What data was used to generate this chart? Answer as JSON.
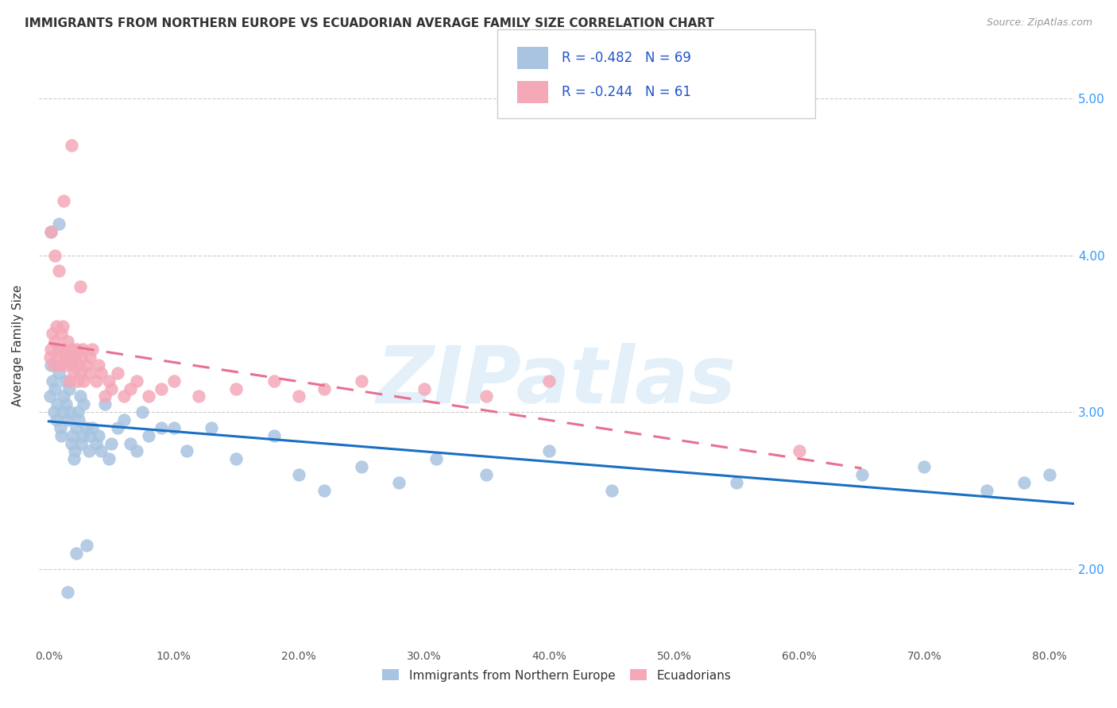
{
  "title": "IMMIGRANTS FROM NORTHERN EUROPE VS ECUADORIAN AVERAGE FAMILY SIZE CORRELATION CHART",
  "source": "Source: ZipAtlas.com",
  "ylabel": "Average Family Size",
  "yticks_right": [
    2.0,
    3.0,
    4.0,
    5.0
  ],
  "ylim": [
    1.5,
    5.35
  ],
  "xlim": [
    -0.008,
    0.82
  ],
  "legend_label1": "Immigrants from Northern Europe",
  "legend_label2": "Ecuadorians",
  "R1": -0.482,
  "N1": 69,
  "R2": -0.244,
  "N2": 61,
  "color_blue": "#a8c4e0",
  "color_pink": "#f4a8b8",
  "trendline_blue": "#1a6fc4",
  "trendline_pink": "#e87090",
  "watermark": "ZIPatlas",
  "blue_x": [
    0.001,
    0.002,
    0.003,
    0.004,
    0.005,
    0.006,
    0.007,
    0.008,
    0.009,
    0.01,
    0.011,
    0.012,
    0.013,
    0.014,
    0.015,
    0.016,
    0.017,
    0.018,
    0.019,
    0.02,
    0.021,
    0.022,
    0.023,
    0.024,
    0.025,
    0.026,
    0.027,
    0.028,
    0.03,
    0.032,
    0.033,
    0.035,
    0.038,
    0.04,
    0.042,
    0.045,
    0.048,
    0.05,
    0.055,
    0.06,
    0.065,
    0.07,
    0.075,
    0.08,
    0.09,
    0.1,
    0.11,
    0.13,
    0.15,
    0.18,
    0.2,
    0.22,
    0.25,
    0.28,
    0.31,
    0.35,
    0.4,
    0.45,
    0.55,
    0.65,
    0.7,
    0.75,
    0.78,
    0.8,
    0.002,
    0.008,
    0.015,
    0.022,
    0.03
  ],
  "blue_y": [
    3.1,
    3.3,
    3.2,
    3.0,
    3.15,
    2.95,
    3.05,
    3.25,
    2.9,
    2.85,
    3.0,
    3.1,
    3.2,
    3.05,
    2.95,
    3.15,
    3.0,
    2.8,
    2.85,
    2.7,
    2.75,
    2.9,
    3.0,
    2.95,
    3.1,
    2.8,
    2.85,
    3.05,
    2.9,
    2.75,
    2.85,
    2.9,
    2.8,
    2.85,
    2.75,
    3.05,
    2.7,
    2.8,
    2.9,
    2.95,
    2.8,
    2.75,
    3.0,
    2.85,
    2.9,
    2.9,
    2.75,
    2.9,
    2.7,
    2.85,
    2.6,
    2.5,
    2.65,
    2.55,
    2.7,
    2.6,
    2.75,
    2.5,
    2.55,
    2.6,
    2.65,
    2.5,
    2.55,
    2.6,
    4.15,
    4.2,
    1.85,
    2.1,
    2.15
  ],
  "pink_x": [
    0.001,
    0.002,
    0.003,
    0.004,
    0.005,
    0.006,
    0.007,
    0.008,
    0.009,
    0.01,
    0.011,
    0.012,
    0.013,
    0.014,
    0.015,
    0.016,
    0.017,
    0.018,
    0.019,
    0.02,
    0.021,
    0.022,
    0.023,
    0.024,
    0.025,
    0.026,
    0.027,
    0.028,
    0.03,
    0.032,
    0.033,
    0.035,
    0.038,
    0.04,
    0.042,
    0.045,
    0.048,
    0.05,
    0.055,
    0.06,
    0.065,
    0.07,
    0.08,
    0.09,
    0.1,
    0.12,
    0.15,
    0.18,
    0.2,
    0.22,
    0.25,
    0.3,
    0.35,
    0.4,
    0.6,
    0.002,
    0.005,
    0.008,
    0.012,
    0.018,
    0.025
  ],
  "pink_y": [
    3.35,
    3.4,
    3.5,
    3.3,
    3.45,
    3.55,
    3.35,
    3.4,
    3.3,
    3.5,
    3.55,
    3.4,
    3.35,
    3.3,
    3.45,
    3.2,
    3.35,
    3.4,
    3.3,
    3.25,
    3.35,
    3.4,
    3.2,
    3.3,
    3.25,
    3.35,
    3.4,
    3.2,
    3.3,
    3.25,
    3.35,
    3.4,
    3.2,
    3.3,
    3.25,
    3.1,
    3.2,
    3.15,
    3.25,
    3.1,
    3.15,
    3.2,
    3.1,
    3.15,
    3.2,
    3.1,
    3.15,
    3.2,
    3.1,
    3.15,
    3.2,
    3.15,
    3.1,
    3.2,
    2.75,
    4.15,
    4.0,
    3.9,
    4.35,
    4.7,
    3.8
  ]
}
